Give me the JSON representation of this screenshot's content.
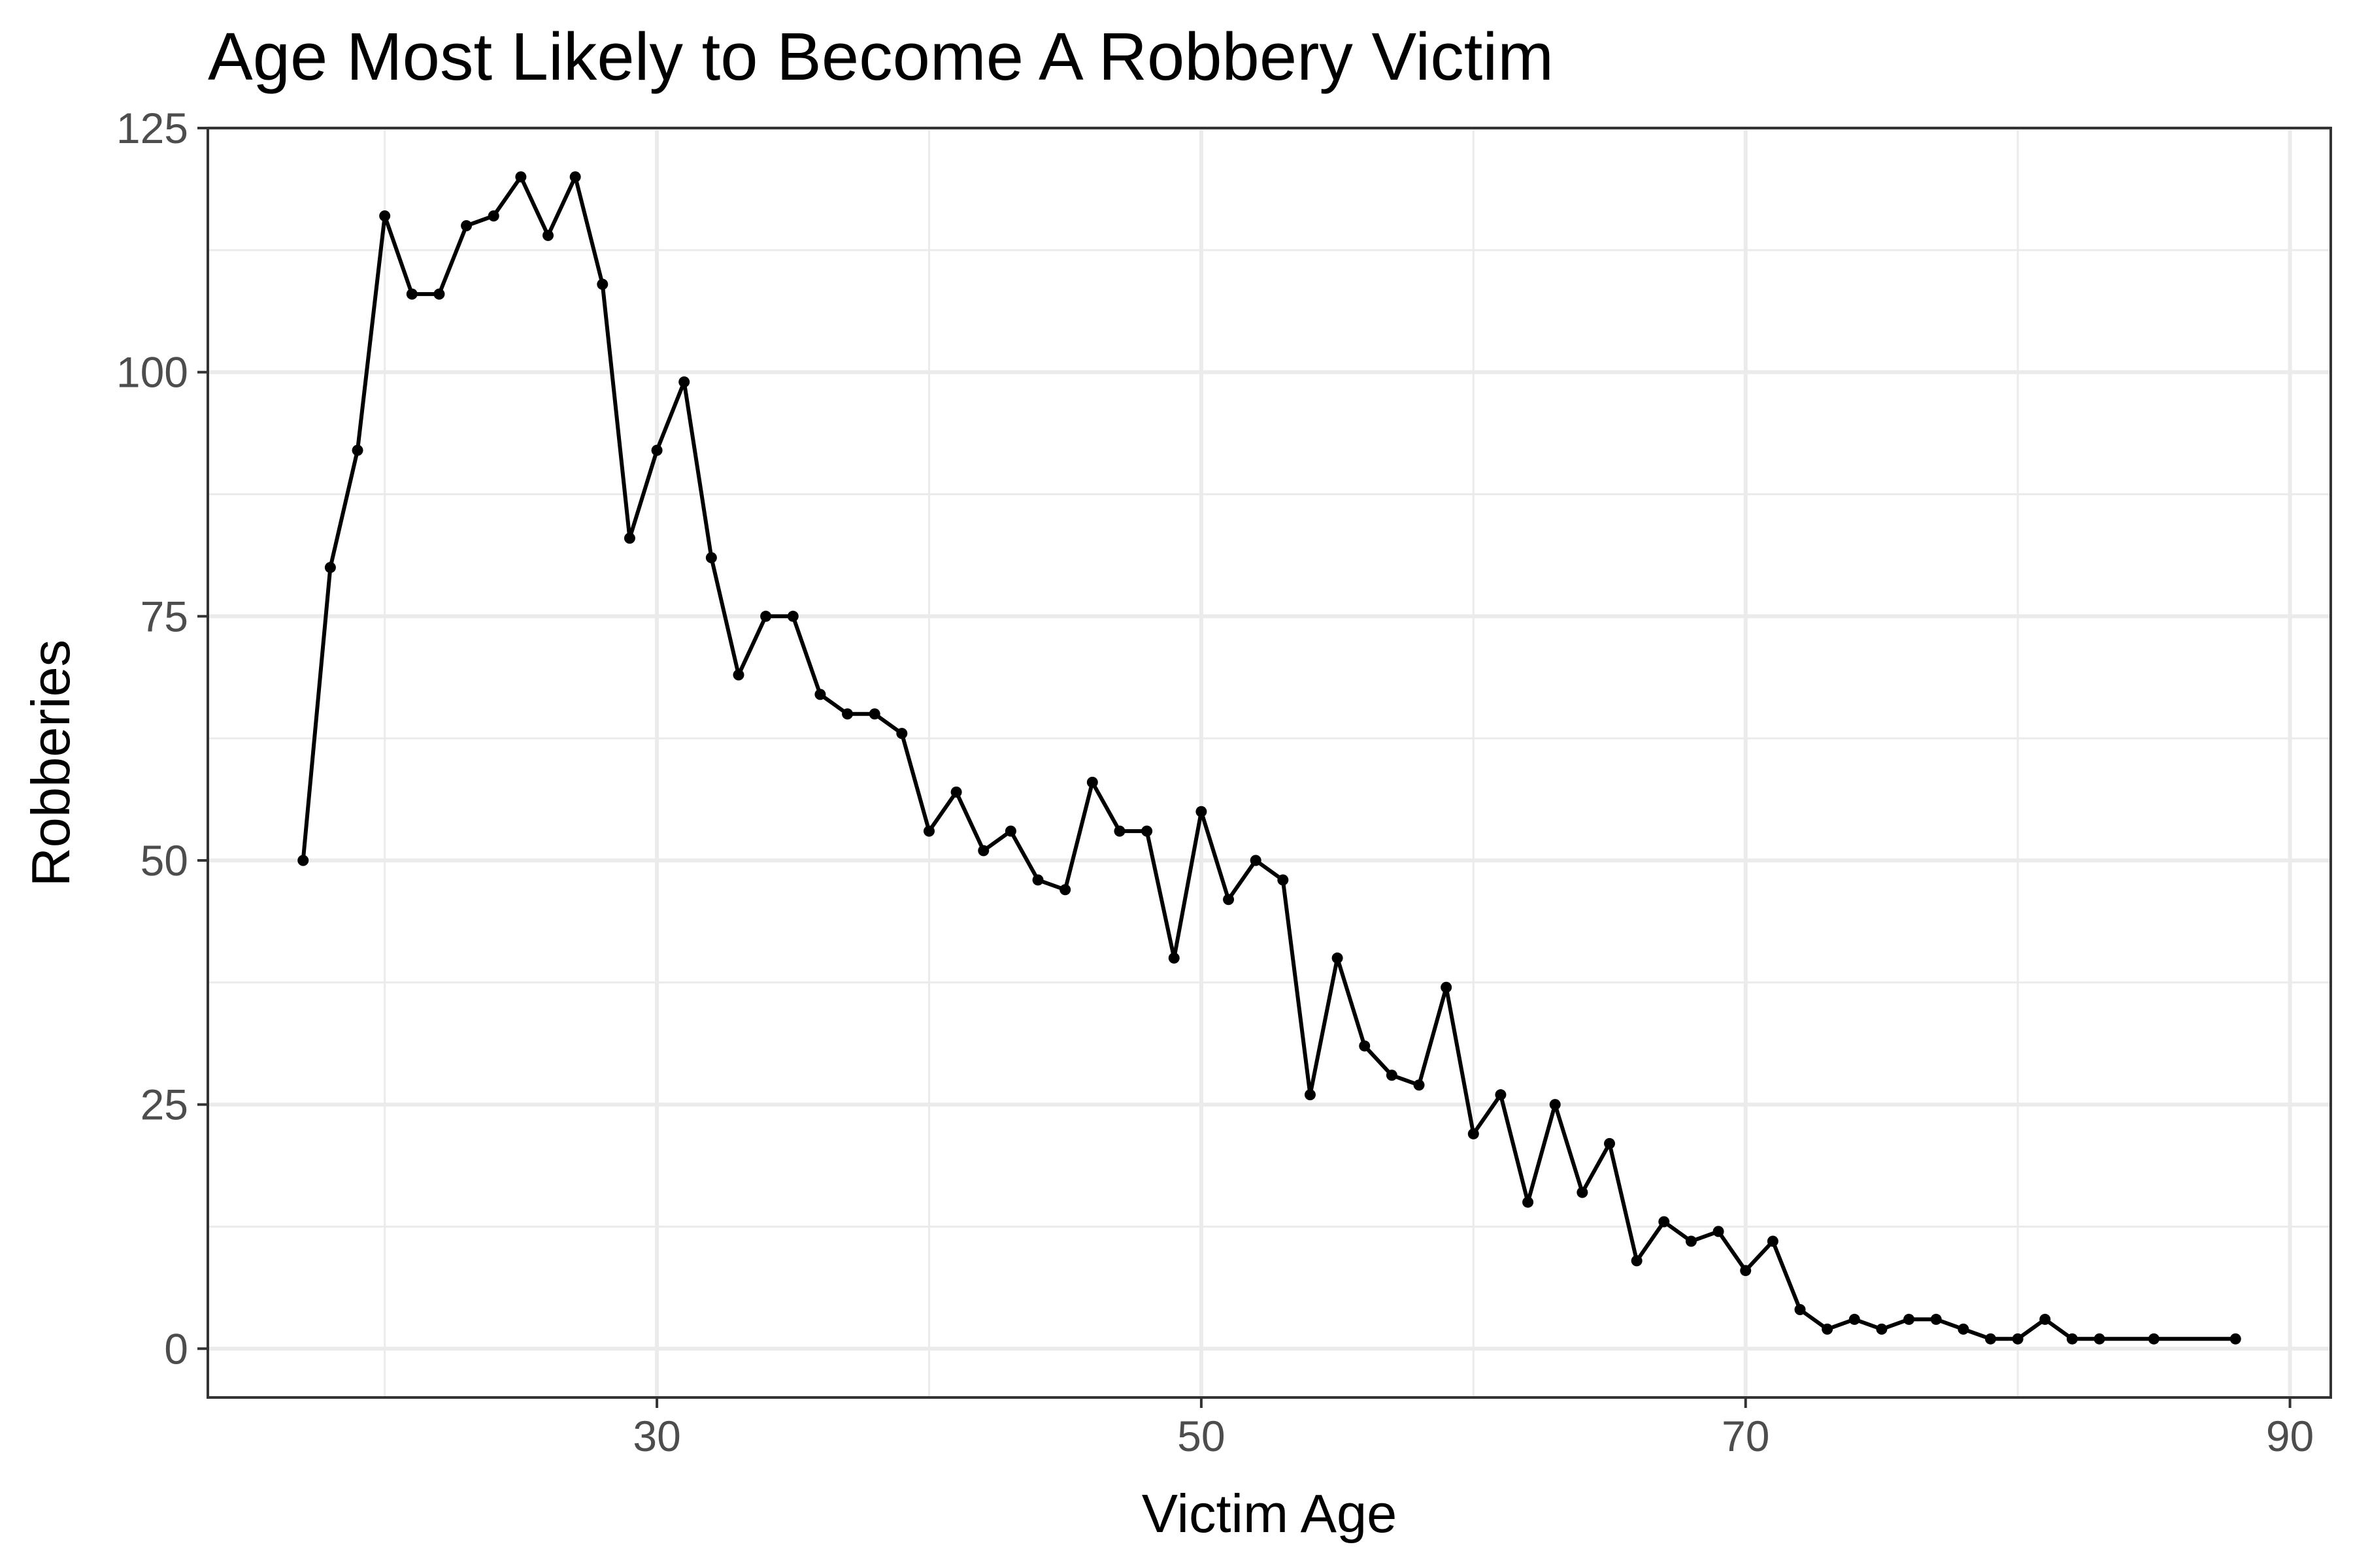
{
  "chart_data": {
    "type": "line",
    "title": "Age Most Likely to Become A Robbery Victim",
    "xlabel": "Victim Age",
    "ylabel": "Robberies",
    "xlim": [
      13.5,
      91.5
    ],
    "ylim": [
      -5,
      125
    ],
    "x_ticks": [
      30,
      50,
      70,
      90
    ],
    "x_minor_ticks": [
      20,
      40,
      60,
      80
    ],
    "y_ticks": [
      0,
      25,
      50,
      75,
      100,
      125
    ],
    "y_minor_ticks": [
      12.5,
      37.5,
      62.5,
      87.5,
      112.5
    ],
    "grid": true,
    "legend": "none",
    "colors": {
      "line": "#000000",
      "grid": "#ebebeb",
      "panel_border": "#333333",
      "tick_label": "#4d4d4d",
      "background": "#ffffff"
    },
    "series": [
      {
        "x": [
          17,
          18,
          19,
          20,
          21,
          22,
          23,
          24,
          25,
          26,
          27,
          28,
          29,
          30,
          31,
          32,
          33,
          34,
          35,
          36,
          37,
          38,
          39,
          40,
          41,
          42,
          43,
          44,
          45,
          46,
          47,
          48,
          49,
          50,
          51,
          52,
          53,
          54,
          55,
          56,
          57,
          58,
          59,
          60,
          61,
          62,
          63,
          64,
          65,
          66,
          67,
          68,
          69,
          70,
          71,
          72,
          73,
          74,
          75,
          76,
          77,
          78,
          79,
          80,
          81,
          82,
          83,
          85,
          88
        ],
        "values": [
          50,
          80,
          92,
          116,
          108,
          108,
          115,
          116,
          120,
          114,
          120,
          109,
          83,
          92,
          99,
          81,
          69,
          75,
          75,
          67,
          65,
          65,
          63,
          53,
          57,
          51,
          53,
          48,
          47,
          58,
          53,
          53,
          40,
          55,
          46,
          50,
          48,
          26,
          40,
          31,
          28,
          27,
          37,
          22,
          26,
          15,
          25,
          16,
          21,
          9,
          13,
          11,
          12,
          8,
          11,
          4,
          2,
          3,
          2,
          3,
          3,
          2,
          1,
          1,
          3,
          1,
          1,
          1,
          1
        ]
      }
    ]
  }
}
